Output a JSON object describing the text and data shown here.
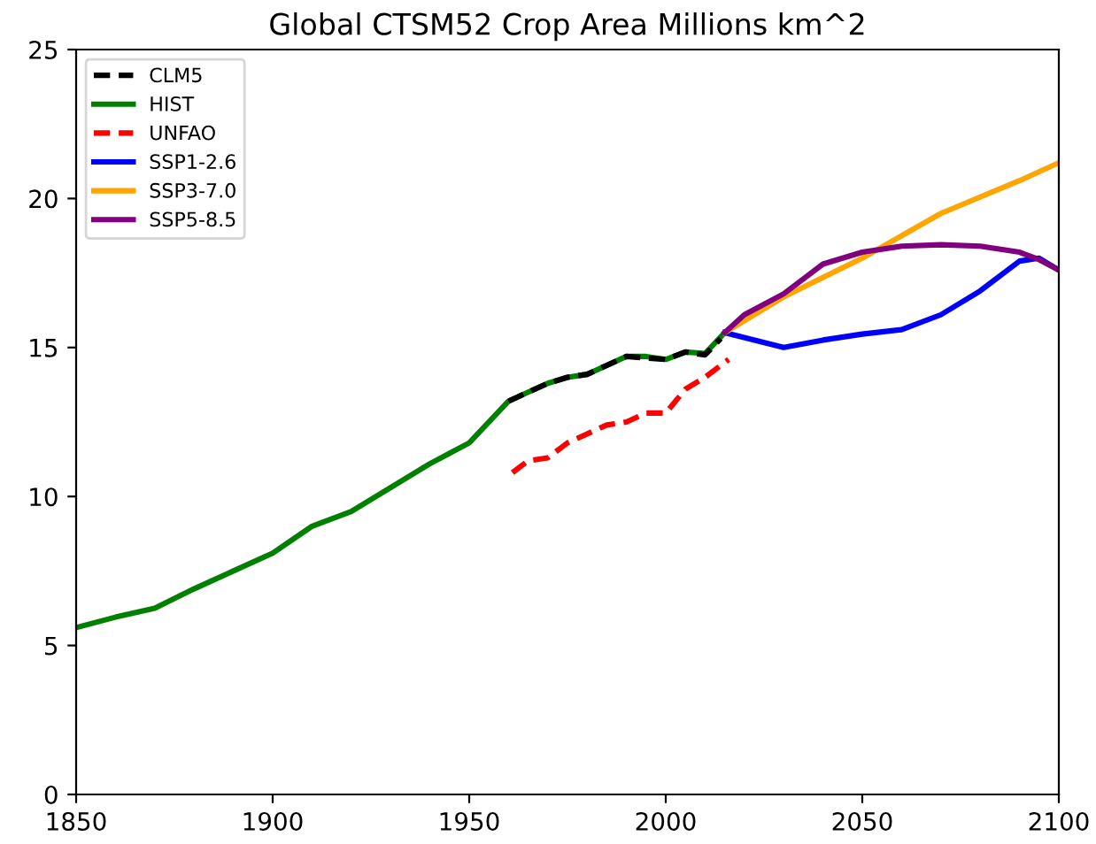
{
  "chart_data": {
    "type": "line",
    "title": "Global CTSM52 Crop Area Millions km^2",
    "xlim": [
      1850,
      2100
    ],
    "xticks": [
      1850,
      1900,
      1950,
      2000,
      2050,
      2100
    ],
    "ylim": [
      0,
      25
    ],
    "yticks": [
      0,
      5,
      10,
      15,
      20,
      25
    ],
    "grid": false,
    "legend": "top left",
    "series": [
      {
        "name": "CLM5",
        "color": "#000000",
        "line_style": "dashed",
        "x": [
          1960,
          1965,
          1970,
          1975,
          1980,
          1985,
          1990,
          1995,
          2000,
          2005,
          2010,
          2014
        ],
        "values": [
          13.2,
          13.5,
          13.8,
          14.0,
          14.1,
          14.4,
          14.7,
          14.65,
          14.6,
          14.85,
          14.75,
          15.3
        ]
      },
      {
        "name": "HIST",
        "color": "#008000",
        "line_style": "solid",
        "x": [
          1850,
          1860,
          1870,
          1880,
          1890,
          1900,
          1910,
          1920,
          1930,
          1940,
          1950,
          1960,
          1965,
          1970,
          1975,
          1980,
          1985,
          1990,
          1995,
          2000,
          2005,
          2010,
          2015
        ],
        "values": [
          5.6,
          5.95,
          6.25,
          6.9,
          7.5,
          8.1,
          9.0,
          9.5,
          10.3,
          11.1,
          11.8,
          13.2,
          13.5,
          13.8,
          14.0,
          14.1,
          14.4,
          14.7,
          14.7,
          14.6,
          14.85,
          14.8,
          15.5
        ]
      },
      {
        "name": "UNFAO",
        "color": "#ff0000",
        "line_style": "dashed",
        "x": [
          1961,
          1965,
          1970,
          1975,
          1980,
          1985,
          1990,
          1995,
          2000,
          2005,
          2010,
          2016
        ],
        "values": [
          10.8,
          11.2,
          11.3,
          11.8,
          12.1,
          12.4,
          12.5,
          12.8,
          12.8,
          13.6,
          14.0,
          14.6
        ]
      },
      {
        "name": "SSP1-2.6",
        "color": "#0000ff",
        "line_style": "solid",
        "x": [
          2015,
          2030,
          2040,
          2050,
          2060,
          2070,
          2080,
          2090,
          2095,
          2100
        ],
        "values": [
          15.5,
          15.0,
          15.25,
          15.45,
          15.6,
          16.1,
          16.9,
          17.9,
          18.0,
          17.6
        ]
      },
      {
        "name": "SSP3-7.0",
        "color": "#ffa500",
        "line_style": "solid",
        "x": [
          2015,
          2030,
          2050,
          2070,
          2090,
          2100
        ],
        "values": [
          15.5,
          16.7,
          18.0,
          19.5,
          20.6,
          21.2
        ]
      },
      {
        "name": "SSP5-8.5",
        "color": "#800080",
        "line_style": "solid",
        "x": [
          2015,
          2020,
          2030,
          2040,
          2050,
          2060,
          2070,
          2080,
          2090,
          2095,
          2100
        ],
        "values": [
          15.5,
          16.1,
          16.8,
          17.8,
          18.2,
          18.4,
          18.45,
          18.4,
          18.2,
          17.95,
          17.6
        ]
      }
    ]
  }
}
